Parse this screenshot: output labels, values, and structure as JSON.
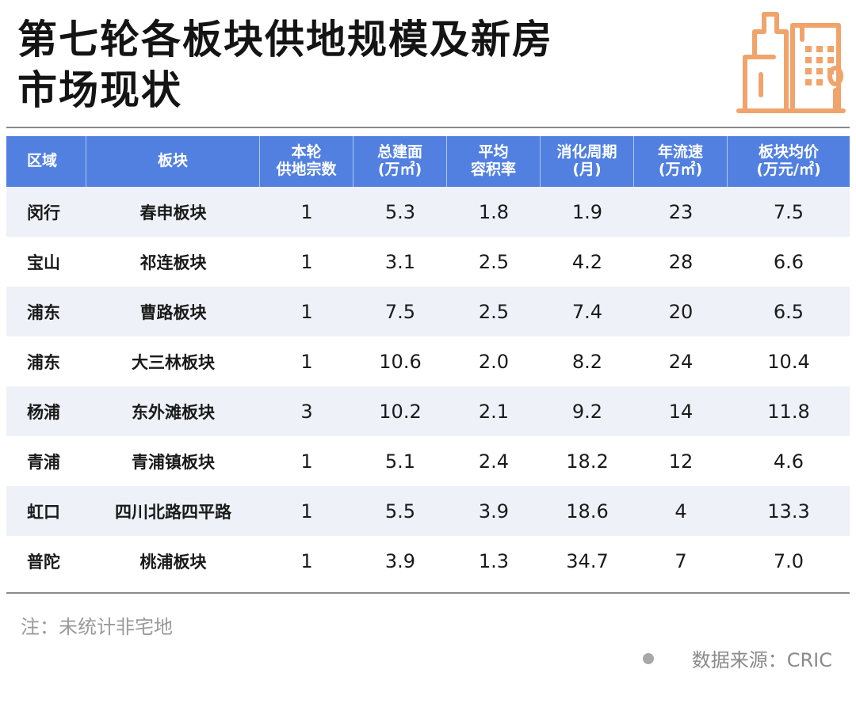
{
  "title": {
    "line1": "第七轮各板块供地规模及新房",
    "line2": "市场现状"
  },
  "colors": {
    "header_bg": "#5180e0",
    "stripe": "#eef1f7",
    "logo": "#f0a46c"
  },
  "logo_icon": "building-icon",
  "table": {
    "headers": [
      {
        "l1": "区域",
        "l2": ""
      },
      {
        "l1": "板块",
        "l2": ""
      },
      {
        "l1": "本轮",
        "l2": "供地宗数"
      },
      {
        "l1": "总建面",
        "l2": "(万㎡)"
      },
      {
        "l1": "平均",
        "l2": "容积率"
      },
      {
        "l1": "消化周期",
        "l2": "(月)"
      },
      {
        "l1": "年流速",
        "l2": "(万㎡)"
      },
      {
        "l1": "板块均价",
        "l2": "(万元/㎡)"
      }
    ],
    "rows": [
      [
        "闵行",
        "春申板块",
        "1",
        "5.3",
        "1.8",
        "1.9",
        "23",
        "7.5"
      ],
      [
        "宝山",
        "祁连板块",
        "1",
        "3.1",
        "2.5",
        "4.2",
        "28",
        "6.6"
      ],
      [
        "浦东",
        "曹路板块",
        "1",
        "7.5",
        "2.5",
        "7.4",
        "20",
        "6.5"
      ],
      [
        "浦东",
        "大三林板块",
        "1",
        "10.6",
        "2.0",
        "8.2",
        "24",
        "10.4"
      ],
      [
        "杨浦",
        "东外滩板块",
        "3",
        "10.2",
        "2.1",
        "9.2",
        "14",
        "11.8"
      ],
      [
        "青浦",
        "青浦镇板块",
        "1",
        "5.1",
        "2.4",
        "18.2",
        "12",
        "4.6"
      ],
      [
        "虹口",
        "四川北路四平路",
        "1",
        "5.5",
        "3.9",
        "18.6",
        "4",
        "13.3"
      ],
      [
        "普陀",
        "桃浦板块",
        "1",
        "3.9",
        "1.3",
        "34.7",
        "7",
        "7.0"
      ]
    ]
  },
  "note": "注：未统计非宅地",
  "source": "数据来源：CRIC"
}
